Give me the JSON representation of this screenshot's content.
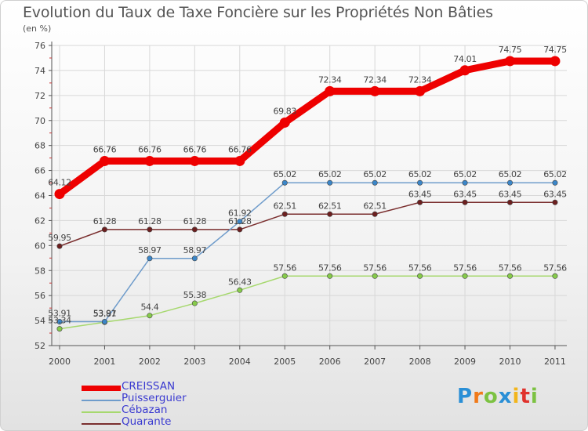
{
  "title": "Evolution du Taux de Taxe Foncière sur les Propriétés Non Bâties",
  "subtitle": "(en %)",
  "logo": {
    "text": "Proxiti",
    "letters": [
      "P",
      "r",
      "o",
      "x",
      "i",
      "t",
      "i"
    ],
    "colors": [
      "#2a8fd6",
      "#f07a1a",
      "#7cc242",
      "#2a8fd6",
      "#f2b51c",
      "#e0332d",
      "#7cc242"
    ]
  },
  "chart_data": {
    "type": "line",
    "title": "Evolution du Taux de Taxe Foncière sur les Propriétés Non Bâties",
    "ylabel": "(en %)",
    "xlabel": "",
    "ylim": [
      52,
      76
    ],
    "yticks": [
      52,
      54,
      56,
      58,
      60,
      62,
      64,
      66,
      68,
      70,
      72,
      74,
      76
    ],
    "categories": [
      "2000",
      "2001",
      "2002",
      "2003",
      "2004",
      "2005",
      "2006",
      "2007",
      "2008",
      "2009",
      "2010",
      "2011"
    ],
    "grid": true,
    "legend_position": "bottom-left",
    "series": [
      {
        "name": "CREISSAN",
        "color": "#ee0000",
        "marker": "#ee0000",
        "values": [
          64.12,
          66.76,
          66.76,
          66.76,
          66.76,
          69.83,
          72.34,
          72.34,
          72.34,
          74.01,
          74.75,
          74.75
        ],
        "labels": [
          "64.12",
          "66.76",
          "66.76",
          "66.76",
          "66.76",
          "69.83",
          "72.34",
          "72.34",
          "72.34",
          "74.01",
          "74.75",
          "74.75"
        ]
      },
      {
        "name": "Puisserguier",
        "color": "#6f9ccb",
        "marker": "#3b86c8",
        "values": [
          53.91,
          53.91,
          58.97,
          58.97,
          61.92,
          65.02,
          65.02,
          65.02,
          65.02,
          65.02,
          65.02,
          65.02
        ],
        "labels": [
          "53.91",
          "53.91",
          "58.97",
          "58.97",
          "61.92",
          "65.02",
          "65.02",
          "65.02",
          "65.02",
          "65.02",
          "65.02",
          "65.02"
        ]
      },
      {
        "name": "Cébazan",
        "color": "#a6d86e",
        "marker": "#86cb4a",
        "values": [
          53.34,
          53.87,
          54.4,
          55.38,
          56.43,
          57.56,
          57.56,
          57.56,
          57.56,
          57.56,
          57.56,
          57.56
        ],
        "labels": [
          "53.34",
          "53.87",
          "54.4",
          "55.38",
          "56.43",
          "57.56",
          "57.56",
          "57.56",
          "57.56",
          "57.56",
          "57.56",
          "57.56"
        ]
      },
      {
        "name": "Quarante",
        "color": "#7a2e2e",
        "marker": "#6d1f1f",
        "values": [
          59.95,
          61.28,
          61.28,
          61.28,
          61.28,
          62.51,
          62.51,
          62.51,
          63.45,
          63.45,
          63.45,
          63.45
        ],
        "labels": [
          "59.95",
          "61.28",
          "61.28",
          "61.28",
          "61.28",
          "62.51",
          "62.51",
          "62.51",
          "63.45",
          "63.45",
          "63.45",
          "63.45"
        ]
      }
    ]
  }
}
